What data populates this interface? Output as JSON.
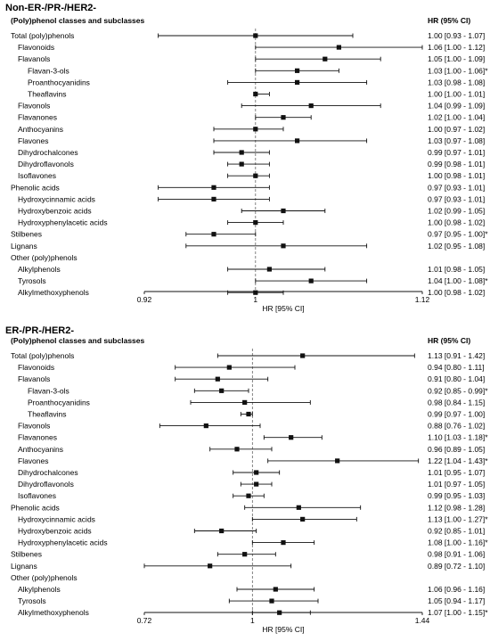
{
  "chart_data": [
    {
      "type": "forest",
      "title": "Non-ER-/PR-/HER2-",
      "column_header_left": "(Poly)phenol classes and subclasses",
      "column_header_right": "HR (95% CI)",
      "xlabel": "HR [95% CI]",
      "xlim": [
        0.92,
        1.12
      ],
      "ticks": [
        "0.92",
        "1",
        "1.12"
      ],
      "reference_line": 1,
      "rows": [
        {
          "label": "Total (poly)phenols",
          "level": 0,
          "hr": 1.0,
          "lo": 0.93,
          "hi": 1.07,
          "text": "1.00 [0.93 - 1.07]"
        },
        {
          "label": "Flavonoids",
          "level": 1,
          "hr": 1.06,
          "lo": 1.0,
          "hi": 1.12,
          "text": "1.06 [1.00 - 1.12]"
        },
        {
          "label": "Flavanols",
          "level": 1,
          "hr": 1.05,
          "lo": 1.0,
          "hi": 1.09,
          "text": "1.05 [1.00 - 1.09]"
        },
        {
          "label": "Flavan-3-ols",
          "level": 2,
          "hr": 1.03,
          "lo": 1.0,
          "hi": 1.06,
          "text": "1.03 [1.00 - 1.06]*"
        },
        {
          "label": "Proanthocyanidins",
          "level": 2,
          "hr": 1.03,
          "lo": 0.98,
          "hi": 1.08,
          "text": "1.03 [0.98 - 1.08]"
        },
        {
          "label": "Theaflavins",
          "level": 2,
          "hr": 1.0,
          "lo": 1.0,
          "hi": 1.01,
          "text": "1.00 [1.00 - 1.01]"
        },
        {
          "label": "Flavonols",
          "level": 1,
          "hr": 1.04,
          "lo": 0.99,
          "hi": 1.09,
          "text": "1.04 [0.99 - 1.09]"
        },
        {
          "label": "Flavanones",
          "level": 1,
          "hr": 1.02,
          "lo": 1.0,
          "hi": 1.04,
          "text": "1.02 [1.00 - 1.04]"
        },
        {
          "label": "Anthocyanins",
          "level": 1,
          "hr": 1.0,
          "lo": 0.97,
          "hi": 1.02,
          "text": "1.00 [0.97 - 1.02]"
        },
        {
          "label": "Flavones",
          "level": 1,
          "hr": 1.03,
          "lo": 0.97,
          "hi": 1.08,
          "text": "1.03 [0.97 - 1.08]"
        },
        {
          "label": "Dihydrochalcones",
          "level": 1,
          "hr": 0.99,
          "lo": 0.97,
          "hi": 1.01,
          "text": "0.99 [0.97 - 1.01]"
        },
        {
          "label": "Dihydroflavonols",
          "level": 1,
          "hr": 0.99,
          "lo": 0.98,
          "hi": 1.01,
          "text": "0.99 [0.98 - 1.01]"
        },
        {
          "label": "Isoflavones",
          "level": 1,
          "hr": 1.0,
          "lo": 0.98,
          "hi": 1.01,
          "text": "1.00 [0.98 - 1.01]"
        },
        {
          "label": "Phenolic acids",
          "level": 0,
          "hr": 0.97,
          "lo": 0.93,
          "hi": 1.01,
          "text": "0.97 [0.93 - 1.01]"
        },
        {
          "label": "Hydroxycinnamic acids",
          "level": 1,
          "hr": 0.97,
          "lo": 0.93,
          "hi": 1.01,
          "text": "0.97 [0.93 - 1.01]"
        },
        {
          "label": "Hydroxybenzoic acids",
          "level": 1,
          "hr": 1.02,
          "lo": 0.99,
          "hi": 1.05,
          "text": "1.02 [0.99 - 1.05]"
        },
        {
          "label": "Hydroxyphenylacetic acids",
          "level": 1,
          "hr": 1.0,
          "lo": 0.98,
          "hi": 1.02,
          "text": "1.00 [0.98 - 1.02]"
        },
        {
          "label": "Stilbenes",
          "level": 0,
          "hr": 0.97,
          "lo": 0.95,
          "hi": 1.0,
          "text": "0.97 [0.95 - 1.00]*"
        },
        {
          "label": "Lignans",
          "level": 0,
          "hr": 1.02,
          "lo": 0.95,
          "hi": 1.08,
          "text": "1.02 [0.95 - 1.08]"
        },
        {
          "label": "Other (poly)phenols",
          "level": 0,
          "hr": null,
          "lo": null,
          "hi": null,
          "text": ""
        },
        {
          "label": "Alkylphenols",
          "level": 1,
          "hr": 1.01,
          "lo": 0.98,
          "hi": 1.05,
          "text": "1.01 [0.98 - 1.05]"
        },
        {
          "label": "Tyrosols",
          "level": 1,
          "hr": 1.04,
          "lo": 1.0,
          "hi": 1.08,
          "text": "1.04 [1.00 - 1.08]*"
        },
        {
          "label": "Alkylmethoxyphenols",
          "level": 1,
          "hr": 1.0,
          "lo": 0.98,
          "hi": 1.02,
          "text": "1.00 [0.98 - 1.02]"
        }
      ]
    },
    {
      "type": "forest",
      "title": "ER-/PR-/HER2-",
      "column_header_left": "(Poly)phenol classes and subclasses",
      "column_header_right": "HR (95% CI)",
      "xlabel": "HR [95% CI]",
      "xlim": [
        0.72,
        1.44
      ],
      "ticks": [
        "0.72",
        "1",
        "1.44"
      ],
      "reference_line": 1,
      "rows": [
        {
          "label": "Total (poly)phenols",
          "level": 0,
          "hr": 1.13,
          "lo": 0.91,
          "hi": 1.42,
          "text": "1.13 [0.91 - 1.42]"
        },
        {
          "label": "Flavonoids",
          "level": 1,
          "hr": 0.94,
          "lo": 0.8,
          "hi": 1.11,
          "text": "0.94 [0.80 - 1.11]"
        },
        {
          "label": "Flavanols",
          "level": 1,
          "hr": 0.91,
          "lo": 0.8,
          "hi": 1.04,
          "text": "0.91 [0.80 - 1.04]"
        },
        {
          "label": "Flavan-3-ols",
          "level": 2,
          "hr": 0.92,
          "lo": 0.85,
          "hi": 0.99,
          "text": "0.92 [0.85 - 0.99]*"
        },
        {
          "label": "Proanthocyanidins",
          "level": 2,
          "hr": 0.98,
          "lo": 0.84,
          "hi": 1.15,
          "text": "0.98 [0.84 - 1.15]"
        },
        {
          "label": "Theaflavins",
          "level": 2,
          "hr": 0.99,
          "lo": 0.97,
          "hi": 1.0,
          "text": "0.99 [0.97 - 1.00]"
        },
        {
          "label": "Flavonols",
          "level": 1,
          "hr": 0.88,
          "lo": 0.76,
          "hi": 1.02,
          "text": "0.88 [0.76 - 1.02]"
        },
        {
          "label": "Flavanones",
          "level": 1,
          "hr": 1.1,
          "lo": 1.03,
          "hi": 1.18,
          "text": "1.10 [1.03 - 1.18]*"
        },
        {
          "label": "Anthocyanins",
          "level": 1,
          "hr": 0.96,
          "lo": 0.89,
          "hi": 1.05,
          "text": "0.96 [0.89 - 1.05]"
        },
        {
          "label": "Flavones",
          "level": 1,
          "hr": 1.22,
          "lo": 1.04,
          "hi": 1.43,
          "text": "1.22 [1.04 - 1.43]*"
        },
        {
          "label": "Dihydrochalcones",
          "level": 1,
          "hr": 1.01,
          "lo": 0.95,
          "hi": 1.07,
          "text": "1.01 [0.95 - 1.07]"
        },
        {
          "label": "Dihydroflavonols",
          "level": 1,
          "hr": 1.01,
          "lo": 0.97,
          "hi": 1.05,
          "text": "1.01 [0.97 - 1.05]"
        },
        {
          "label": "Isoflavones",
          "level": 1,
          "hr": 0.99,
          "lo": 0.95,
          "hi": 1.03,
          "text": "0.99 [0.95 - 1.03]"
        },
        {
          "label": "Phenolic acids",
          "level": 0,
          "hr": 1.12,
          "lo": 0.98,
          "hi": 1.28,
          "text": "1.12 [0.98 - 1.28]"
        },
        {
          "label": "Hydroxycinnamic acids",
          "level": 1,
          "hr": 1.13,
          "lo": 1.0,
          "hi": 1.27,
          "text": "1.13 [1.00 - 1.27]*"
        },
        {
          "label": "Hydroxybenzoic acids",
          "level": 1,
          "hr": 0.92,
          "lo": 0.85,
          "hi": 1.01,
          "text": "0.92 [0.85 - 1.01]"
        },
        {
          "label": "Hydroxyphenylacetic acids",
          "level": 1,
          "hr": 1.08,
          "lo": 1.0,
          "hi": 1.16,
          "text": "1.08 [1.00 - 1.16]*"
        },
        {
          "label": "Stilbenes",
          "level": 0,
          "hr": 0.98,
          "lo": 0.91,
          "hi": 1.06,
          "text": "0.98 [0.91 - 1.06]"
        },
        {
          "label": "Lignans",
          "level": 0,
          "hr": 0.89,
          "lo": 0.72,
          "hi": 1.1,
          "text": "0.89 [0.72 - 1.10]"
        },
        {
          "label": "Other (poly)phenols",
          "level": 0,
          "hr": null,
          "lo": null,
          "hi": null,
          "text": ""
        },
        {
          "label": "Alkylphenols",
          "level": 1,
          "hr": 1.06,
          "lo": 0.96,
          "hi": 1.16,
          "text": "1.06 [0.96 - 1.16]"
        },
        {
          "label": "Tyrosols",
          "level": 1,
          "hr": 1.05,
          "lo": 0.94,
          "hi": 1.17,
          "text": "1.05 [0.94 - 1.17]"
        },
        {
          "label": "Alkylmethoxyphenols",
          "level": 1,
          "hr": 1.07,
          "lo": 1.0,
          "hi": 1.15,
          "text": "1.07 [1.00 - 1.15]*"
        }
      ]
    }
  ]
}
